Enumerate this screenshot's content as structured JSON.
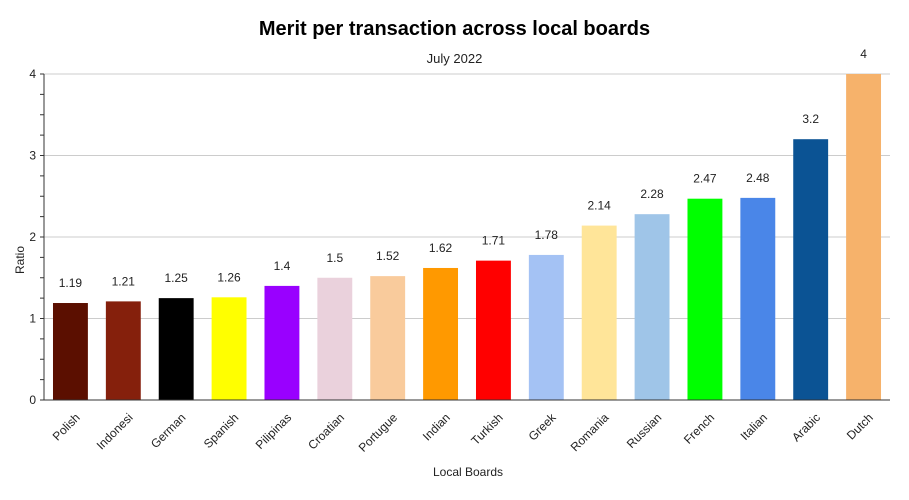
{
  "chart_data": {
    "type": "bar",
    "title": "Merit per transaction across local boards",
    "subtitle": "July 2022",
    "xlabel": "Local Boards",
    "ylabel": "Ratio",
    "ylim": [
      0,
      4
    ],
    "yticks": [
      0,
      1,
      2,
      3,
      4
    ],
    "grid": true,
    "legend": "none",
    "categories": [
      "Polish",
      "Indonesi",
      "German",
      "Spanish",
      "Pilipinas",
      "Croatian",
      "Portugue",
      "Indian",
      "Turkish",
      "Greek",
      "Romania",
      "Russian",
      "French",
      "Italian",
      "Arabic",
      "Dutch"
    ],
    "values": [
      1.19,
      1.21,
      1.25,
      1.26,
      1.4,
      1.5,
      1.52,
      1.62,
      1.71,
      1.78,
      2.14,
      2.28,
      2.47,
      2.48,
      3.2,
      4
    ],
    "value_labels": [
      "1.19",
      "1.21",
      "1.25",
      "1.26",
      "1.4",
      "1.5",
      "1.52",
      "1.62",
      "1.71",
      "1.78",
      "2.14",
      "2.28",
      "2.47",
      "2.48",
      "3.2",
      "4"
    ],
    "colors": [
      "#5b0f00",
      "#85200c",
      "#000000",
      "#ffff00",
      "#9900ff",
      "#ead1dc",
      "#f9cb9c",
      "#ff9900",
      "#ff0000",
      "#a4c2f4",
      "#ffe599",
      "#9fc5e8",
      "#00ff00",
      "#4a86e8",
      "#0b5394",
      "#f6b26b"
    ]
  }
}
